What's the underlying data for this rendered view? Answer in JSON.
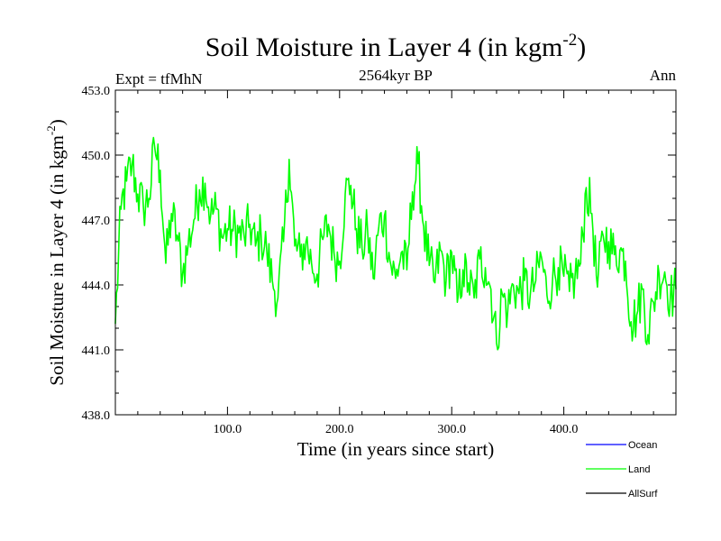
{
  "chart_data": {
    "type": "line",
    "title": "Soil Moisture in Layer 4 (in kgm",
    "title_sup": "-2",
    "title_close": ")",
    "subtitle": "2564kyr BP",
    "left_label": "Expt = tfMhN",
    "right_label": "Ann",
    "xlabel": "Time (in years since start)",
    "ylabel": "Soil Moisture in Layer 4 (in kgm",
    "ylabel_sup": "-2",
    "ylabel_close": ")",
    "xlim": [
      0,
      500
    ],
    "ylim": [
      438.0,
      453.0
    ],
    "xticks": [
      100,
      200,
      300,
      400
    ],
    "xtick_labels": [
      "100.0",
      "200.0",
      "300.0",
      "400.0"
    ],
    "yticks": [
      438.0,
      441.0,
      444.0,
      447.0,
      450.0,
      453.0
    ],
    "ytick_labels": [
      "438.0",
      "441.0",
      "444.0",
      "447.0",
      "450.0",
      "453.0"
    ],
    "legend": [
      {
        "name": "Ocean",
        "color": "#0000ff"
      },
      {
        "name": "Land",
        "color": "#00ff00"
      },
      {
        "name": "AllSurf",
        "color": "#000000"
      }
    ],
    "series": [
      {
        "name": "Land",
        "color": "#00ff00",
        "x": [
          0,
          5,
          10,
          15,
          20,
          25,
          30,
          35,
          40,
          45,
          50,
          55,
          60,
          65,
          70,
          75,
          80,
          85,
          90,
          95,
          100,
          105,
          110,
          115,
          120,
          125,
          130,
          135,
          140,
          145,
          150,
          155,
          160,
          165,
          170,
          175,
          180,
          185,
          190,
          195,
          200,
          205,
          210,
          215,
          220,
          225,
          230,
          235,
          240,
          245,
          250,
          255,
          260,
          265,
          270,
          275,
          280,
          285,
          290,
          295,
          300,
          305,
          310,
          315,
          320,
          325,
          330,
          335,
          340,
          345,
          350,
          355,
          360,
          365,
          370,
          375,
          380,
          385,
          390,
          395,
          400,
          405,
          410,
          415,
          420,
          425,
          430,
          435,
          440,
          445,
          450,
          455,
          460,
          465,
          470,
          475,
          480,
          485,
          490,
          495,
          500
        ],
        "y": [
          442.2,
          447.5,
          448.8,
          449.6,
          448.2,
          447.6,
          448.0,
          450.4,
          449.3,
          445.0,
          447.3,
          446.3,
          444.5,
          445.9,
          447.0,
          448.4,
          448.7,
          447.2,
          447.5,
          446.2,
          446.6,
          446.5,
          446.4,
          446.2,
          446.8,
          445.8,
          446.3,
          445.6,
          444.2,
          443.4,
          446.0,
          449.8,
          445.8,
          445.3,
          446.0,
          445.0,
          444.5,
          446.1,
          446.8,
          445.5,
          445.1,
          448.2,
          448.6,
          446.6,
          445.7,
          446.5,
          444.3,
          446.7,
          447.2,
          445.1,
          444.3,
          445.5,
          444.7,
          448.3,
          449.6,
          446.7,
          444.9,
          444.1,
          445.6,
          444.2,
          445.5,
          443.2,
          444.7,
          444.1,
          443.4,
          445.2,
          444.8,
          443.8,
          441.3,
          443.6,
          442.8,
          444.0,
          443.6,
          444.2,
          443.5,
          444.2,
          445.3,
          443.5,
          444.3,
          444.8,
          444.4,
          443.7,
          444.4,
          445.0,
          448.5,
          447.3,
          443.9,
          446.3,
          446.0,
          445.4,
          445.6,
          445.1,
          442.3,
          442.6,
          443.8,
          441.7,
          443.2,
          444.5,
          444.6,
          443.4,
          443.8
        ]
      }
    ]
  }
}
